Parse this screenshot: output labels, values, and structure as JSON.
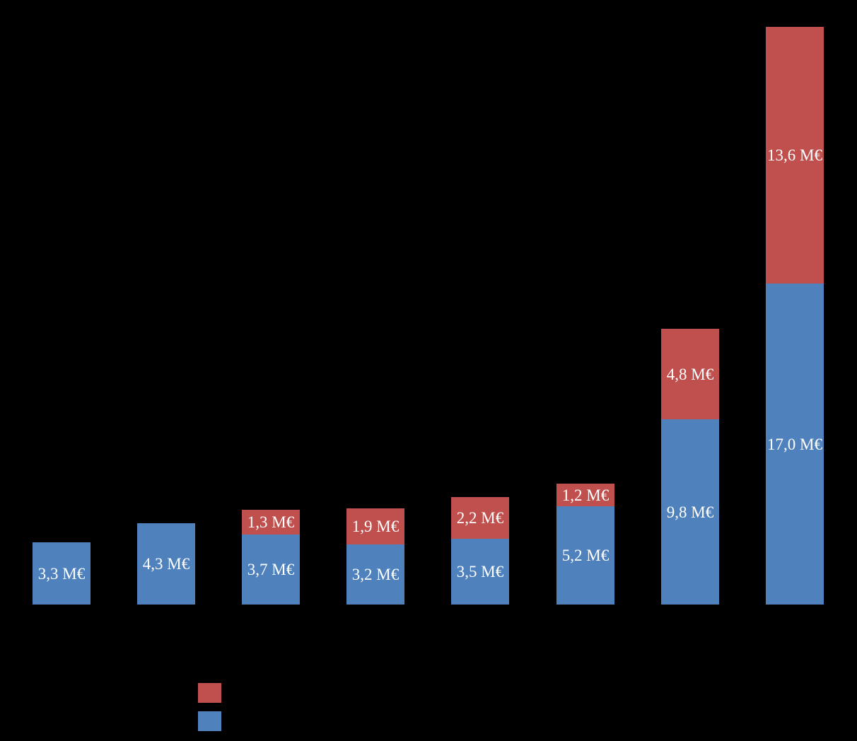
{
  "chart_data": {
    "type": "bar",
    "stacked": true,
    "unit": "M€",
    "background_color": "#000000",
    "value_label_color": "#FFFFFF",
    "bar_count": 8,
    "ylim": [
      0,
      30.6
    ],
    "categories": [
      "",
      "",
      "",
      "",
      "",
      "",
      "",
      ""
    ],
    "series": [
      {
        "name": "blue-bottom-series",
        "color": "#4F81BD",
        "values": [
          3.3,
          4.3,
          3.7,
          3.2,
          3.5,
          5.2,
          9.8,
          17.0
        ],
        "labels": [
          "3,3 M€",
          "4,3 M€",
          "3,7 M€",
          "3,2 M€",
          "3,5 M€",
          "5,2 M€",
          "9,8 M€",
          "17,0 M€"
        ]
      },
      {
        "name": "red-top-series",
        "color": "#C0504D",
        "values": [
          null,
          null,
          1.3,
          1.9,
          2.2,
          1.2,
          4.8,
          13.6
        ],
        "labels": [
          null,
          null,
          "1,3 M€",
          "1,9 M€",
          "2,2 M€",
          "1,2 M€",
          "4,8 M€",
          "13,6 M€"
        ]
      }
    ],
    "totals": [
      3.3,
      4.3,
      5.0,
      5.1,
      5.7,
      6.4,
      14.6,
      30.6
    ],
    "legend": {
      "position": "bottom-left",
      "entries": [
        {
          "name": "red-series-swatch",
          "color": "#C0504D",
          "label": ""
        },
        {
          "name": "blue-series-swatch",
          "color": "#4F81BD",
          "label": ""
        }
      ]
    }
  }
}
